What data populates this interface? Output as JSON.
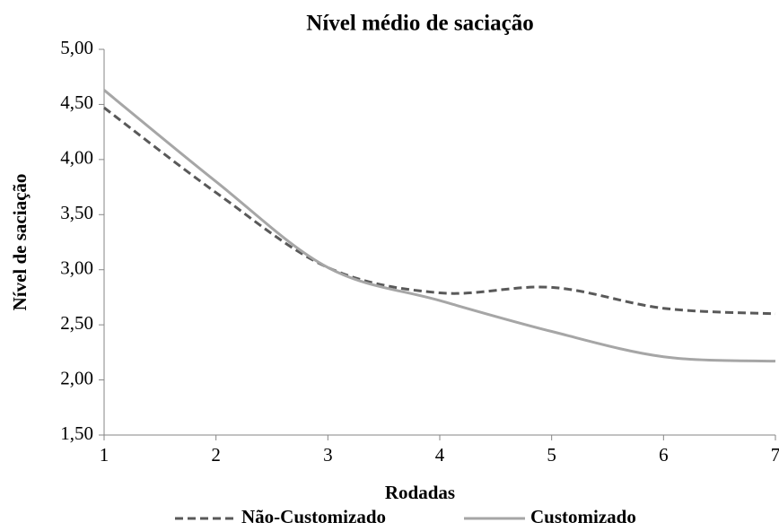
{
  "chart_data": {
    "type": "line",
    "title": "Nível médio de saciação",
    "x_label": "Rodadas",
    "y_label": "Nível de saciação",
    "x": [
      1,
      2,
      3,
      4,
      5,
      6,
      7
    ],
    "xlim": [
      1,
      7
    ],
    "xticks": [
      1,
      2,
      3,
      4,
      5,
      6,
      7
    ],
    "ylim": [
      1.5,
      5
    ],
    "yticks": [
      {
        "value": 1.5,
        "label": "1,50"
      },
      {
        "value": 2,
        "label": "2,00"
      },
      {
        "value": 2.5,
        "label": "2,50"
      },
      {
        "value": 3,
        "label": "3,00"
      },
      {
        "value": 3.5,
        "label": "3,50"
      },
      {
        "value": 4,
        "label": "4,00"
      },
      {
        "value": 4.5,
        "label": "4,50"
      },
      {
        "value": 5,
        "label": "5,00"
      }
    ],
    "grid": false,
    "smooth": true,
    "legend": "bottom",
    "series": [
      {
        "name": "Não-Customizado",
        "color": "#595959",
        "dash": true,
        "values": [
          4.47,
          3.7,
          3.02,
          2.79,
          2.84,
          2.65,
          2.6
        ]
      },
      {
        "name": "Customizado",
        "color": "#a6a6a6",
        "dash": false,
        "values": [
          4.63,
          3.8,
          3.02,
          2.72,
          2.44,
          2.21,
          2.17
        ]
      }
    ]
  }
}
